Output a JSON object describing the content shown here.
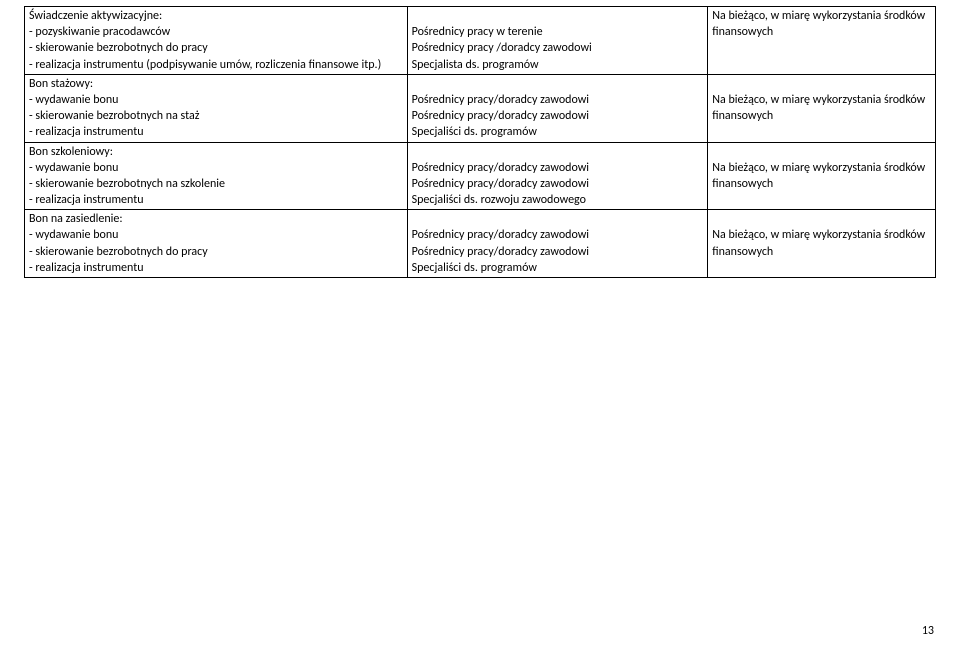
{
  "table": {
    "rows": [
      {
        "c1": "Świadczenie aktywizacyjne:\n  - pozyskiwanie pracodawców\n  - skierowanie bezrobotnych do pracy\n  - realizacja instrumentu (podpisywanie umów, rozliczenia finansowe itp.)",
        "c2": "\nPośrednicy pracy w terenie\nPośrednicy pracy /doradcy zawodowi\nSpecjalista ds. programów",
        "c3": "Na bieżąco, w miarę wykorzystania środków finansowych"
      },
      {
        "c1": "Bon stażowy:\n- wydawanie bonu\n- skierowanie bezrobotnych na staż\n- realizacja instrumentu",
        "c2": "\nPośrednicy pracy/doradcy zawodowi\nPośrednicy pracy/doradcy zawodowi\nSpecjaliści ds. programów",
        "c3": "\nNa bieżąco, w miarę wykorzystania środków finansowych"
      },
      {
        "c1": "Bon szkoleniowy:\n- wydawanie bonu\n- skierowanie bezrobotnych na szkolenie\n- realizacja instrumentu",
        "c2": "\nPośrednicy pracy/doradcy zawodowi\nPośrednicy pracy/doradcy zawodowi\nSpecjaliści ds. rozwoju zawodowego",
        "c3": "\nNa bieżąco, w miarę wykorzystania środków finansowych"
      },
      {
        "c1": "Bon na zasiedlenie:\n- wydawanie bonu\n- skierowanie bezrobotnych do pracy\n- realizacja instrumentu",
        "c2": "\nPośrednicy pracy/doradcy zawodowi\nPośrednicy pracy/doradcy zawodowi\nSpecjaliści ds. programów",
        "c3": "\nNa bieżąco, w miarę wykorzystania środków finansowych"
      }
    ]
  },
  "page_number": "13"
}
